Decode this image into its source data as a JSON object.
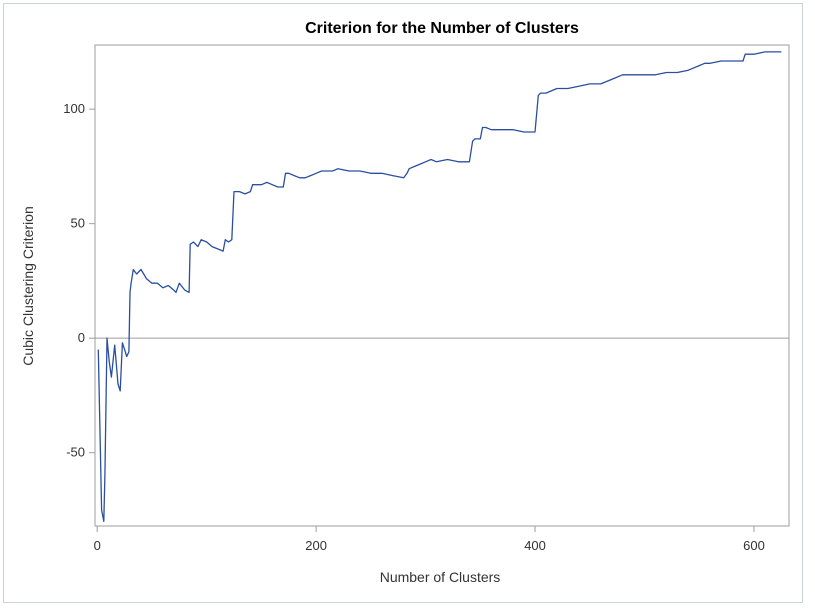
{
  "chart_data": {
    "type": "line",
    "title": "Criterion for the Number of Clusters",
    "xlabel": "Number of Clusters",
    "ylabel": "Cubic Clustering Criterion",
    "xlim": [
      -2,
      632
    ],
    "ylim": [
      -82,
      128
    ],
    "x_ticks": [
      0,
      200,
      400,
      600
    ],
    "y_ticks": [
      -50,
      0,
      50,
      100
    ],
    "reference_line_y": 0,
    "grid": false,
    "line_color": "#2a4fa0",
    "series": [
      {
        "x": [
          1,
          4,
          6,
          7,
          9,
          11,
          13,
          16,
          19,
          21,
          23,
          25,
          27,
          29,
          30,
          31,
          33,
          36,
          40,
          45,
          50,
          55,
          60,
          65,
          70,
          72,
          75,
          80,
          84,
          85,
          88,
          92,
          95,
          100,
          105,
          110,
          115,
          117,
          120,
          123,
          125,
          130,
          135,
          140,
          142,
          145,
          150,
          155,
          160,
          165,
          170,
          172,
          175,
          180,
          185,
          190,
          195,
          200,
          205,
          210,
          215,
          220,
          230,
          240,
          250,
          260,
          270,
          280,
          283,
          285,
          290,
          295,
          300,
          305,
          310,
          320,
          330,
          340,
          343,
          345,
          350,
          352,
          355,
          360,
          370,
          380,
          390,
          400,
          403,
          405,
          410,
          420,
          430,
          440,
          450,
          460,
          470,
          480,
          490,
          500,
          510,
          520,
          530,
          540,
          550,
          555,
          560,
          570,
          580,
          590,
          592,
          595,
          600,
          610,
          620,
          625
        ],
        "y": [
          -5,
          -75,
          -80,
          -60,
          0,
          -10,
          -17,
          -3,
          -20,
          -23,
          -2,
          -5,
          -8,
          -6,
          20,
          24,
          30,
          28,
          30,
          26,
          24,
          24,
          22,
          23,
          21,
          20,
          24,
          21,
          20,
          41,
          42,
          40,
          43,
          42,
          40,
          39,
          38,
          43,
          42,
          43,
          64,
          64,
          63,
          64,
          67,
          67,
          67,
          68,
          67,
          66,
          66,
          72,
          72,
          71,
          70,
          70,
          71,
          72,
          73,
          73,
          73,
          74,
          73,
          73,
          72,
          72,
          71,
          70,
          72,
          74,
          75,
          76,
          77,
          78,
          77,
          78,
          77,
          77,
          86,
          87,
          87,
          92,
          92,
          91,
          91,
          91,
          90,
          90,
          106,
          107,
          107,
          109,
          109,
          110,
          111,
          111,
          113,
          115,
          115,
          115,
          115,
          116,
          116,
          117,
          119,
          120,
          120,
          121,
          121,
          121,
          124,
          124,
          124,
          125,
          125,
          125
        ]
      }
    ]
  }
}
